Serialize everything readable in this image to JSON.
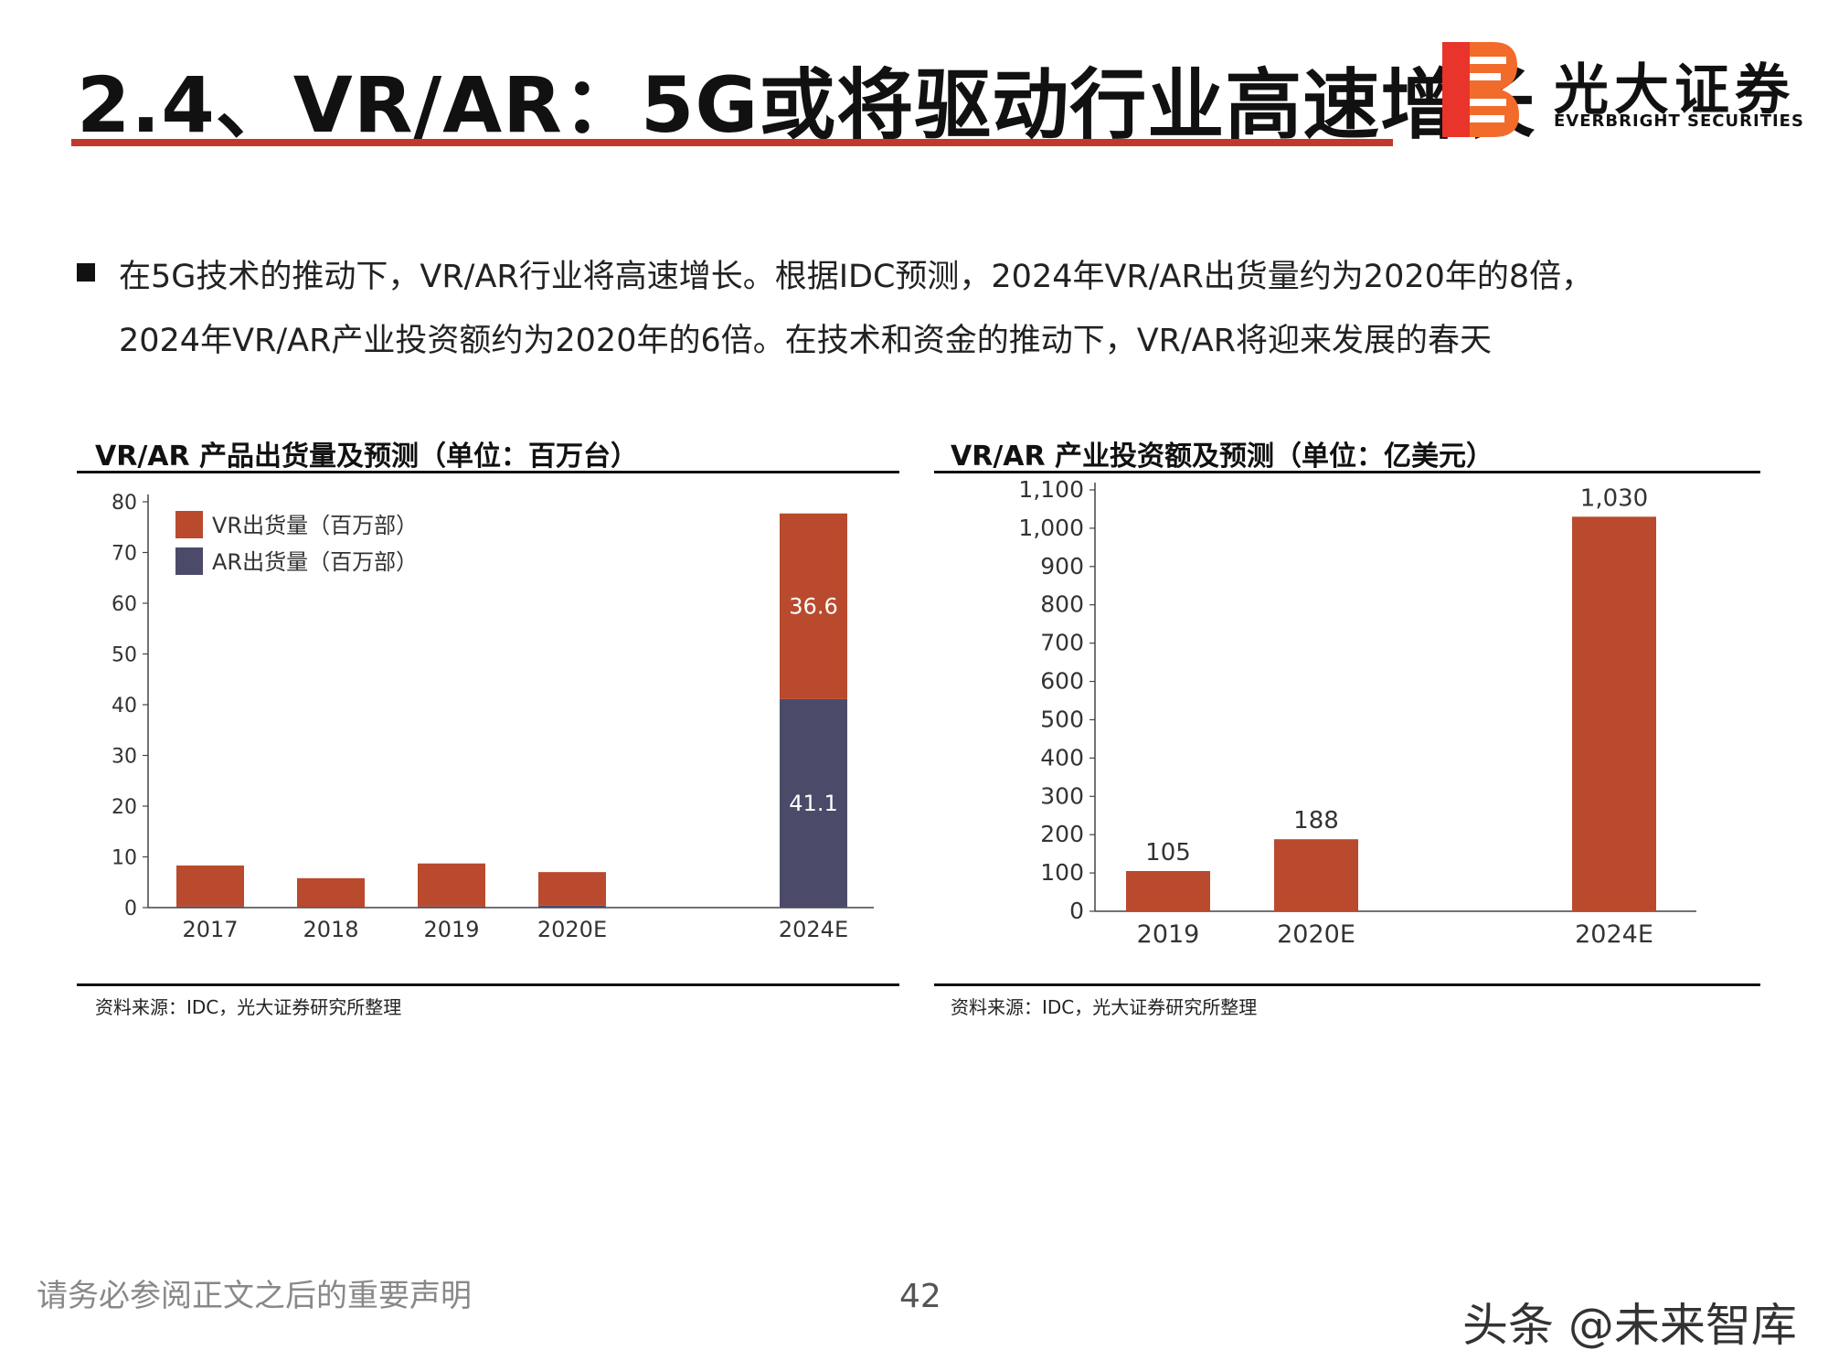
{
  "title": "2.4、VR/AR：5G或将驱动行业高速增长",
  "brand": {
    "cn": "光大证券",
    "en": "EVERBRIGHT SECURITIES"
  },
  "bullet": {
    "line1": "在5G技术的推动下，VR/AR行业将高速增长。根据IDC预测，2024年VR/AR出货量约为2020年的8倍，",
    "line2": "2024年VR/AR产业投资额约为2020年的6倍。在技术和资金的推动下，VR/AR将迎来发展的春天"
  },
  "chart_data": [
    {
      "type": "bar",
      "stacked": true,
      "title": "VR/AR 产品出货量及预测（单位：百万台）",
      "categories": [
        "2017",
        "2018",
        "2019",
        "2020E",
        "2024E"
      ],
      "series": [
        {
          "name": "AR出货量（百万部）",
          "values": [
            0.2,
            0.1,
            0.2,
            0.4,
            41.1
          ],
          "labels": [
            "",
            "",
            "",
            "",
            "41.1"
          ],
          "color": "#4b4b69"
        },
        {
          "name": "VR出货量（百万部）",
          "values": [
            8.1,
            5.7,
            8.5,
            6.6,
            36.6
          ],
          "labels": [
            "",
            "",
            "",
            "",
            "36.6"
          ],
          "color": "#b94a2e"
        }
      ],
      "legend_order": [
        1,
        0
      ],
      "ylim": [
        0,
        80
      ],
      "yticks": [
        "0",
        "10",
        "20",
        "30",
        "40",
        "50",
        "60",
        "70",
        "80"
      ],
      "legend": "top-left",
      "source": "资料来源：IDC，光大证券研究所整理"
    },
    {
      "type": "bar",
      "title": "VR/AR 产业投资额及预测（单位：亿美元）",
      "categories": [
        "2019",
        "2020E",
        "2024E"
      ],
      "series": [
        {
          "values": [
            105,
            188,
            1030
          ],
          "labels": [
            "105",
            "188",
            "1,030"
          ],
          "color": "#b94a2e"
        }
      ],
      "ylim": [
        0,
        1100
      ],
      "yticks": [
        "0",
        "100",
        "200",
        "300",
        "400",
        "500",
        "600",
        "700",
        "800",
        "900",
        "1,000",
        "1,100"
      ],
      "source": "资料来源：IDC，光大证券研究所整理"
    }
  ],
  "footer": {
    "disclaimer": "请务必参阅正文之后的重要声明",
    "page": "42"
  },
  "watermark": "头条 @未来智库"
}
